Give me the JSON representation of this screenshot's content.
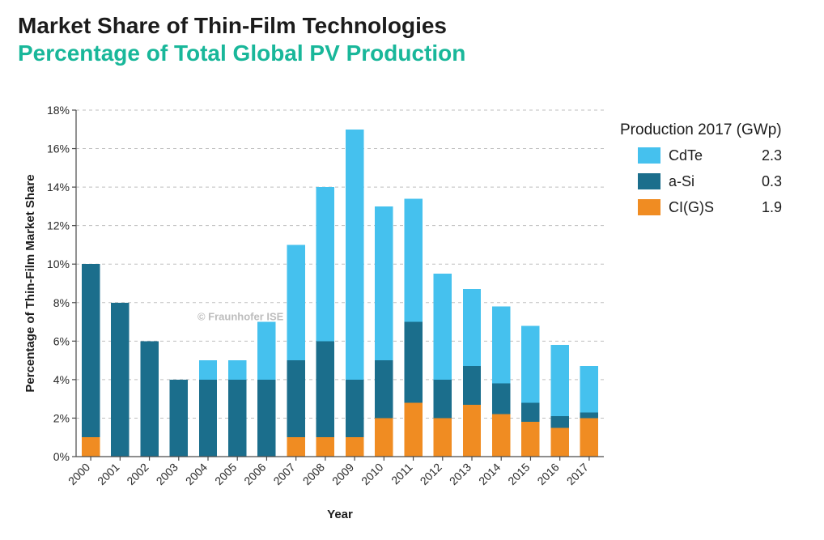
{
  "title": {
    "main": "Market Share of Thin-Film Technologies",
    "sub": "Percentage  of Total Global PV Production",
    "main_color": "#1c1c1c",
    "sub_color": "#19b79a",
    "fontsize": 28,
    "fontweight": 700
  },
  "chart": {
    "type": "stacked-bar",
    "xlabel": "Year",
    "ylabel": "Percentage of Thin-Film Market Share",
    "axis_title_fontsize": 15,
    "tick_fontsize": 14,
    "ylim": [
      0,
      18
    ],
    "ytick_step": 2,
    "yticks": [
      0,
      2,
      4,
      6,
      8,
      10,
      12,
      14,
      16,
      18
    ],
    "ytick_format": "{v}%",
    "grid_color": "#bfbfbf",
    "grid_dash": "4 4",
    "axis_color": "#4a4a4a",
    "background_color": "#ffffff",
    "bar_width_ratio": 0.62,
    "watermark": "© Fraunhofer ISE",
    "watermark_color": "#bdbdbd",
    "x_tick_rotate": -45,
    "categories": [
      "2000",
      "2001",
      "2002",
      "2003",
      "2004",
      "2005",
      "2006",
      "2007",
      "2008",
      "2009",
      "2010",
      "2011",
      "2012",
      "2013",
      "2014",
      "2015",
      "2016",
      "2017"
    ],
    "series": [
      {
        "key": "cigs",
        "label": "CI(G)S",
        "color": "#f08c22"
      },
      {
        "key": "asi",
        "label": "a-Si",
        "color": "#1b6e8c"
      },
      {
        "key": "cdte",
        "label": "CdTe",
        "color": "#45c1ee"
      }
    ],
    "values": {
      "cigs": [
        1.0,
        0.0,
        0.0,
        0.0,
        0.0,
        0.0,
        0.0,
        1.0,
        1.0,
        1.0,
        2.0,
        2.8,
        2.0,
        2.7,
        2.2,
        1.8,
        1.5,
        2.0
      ],
      "asi": [
        9.0,
        8.0,
        6.0,
        4.0,
        4.0,
        4.0,
        4.0,
        4.0,
        5.0,
        3.0,
        3.0,
        4.2,
        2.0,
        2.0,
        1.6,
        1.0,
        0.6,
        0.3
      ],
      "cdte": [
        0.0,
        0.0,
        0.0,
        0.0,
        1.0,
        1.0,
        3.0,
        6.0,
        8.0,
        13.0,
        8.0,
        6.4,
        5.5,
        4.0,
        4.0,
        4.0,
        3.7,
        2.4
      ]
    }
  },
  "legend": {
    "title": "Production 2017 (GWp)",
    "title_fontsize": 19,
    "item_fontsize": 18,
    "items": [
      {
        "label": "CdTe",
        "value": "2.3",
        "color": "#45c1ee"
      },
      {
        "label": "a-Si",
        "value": "0.3",
        "color": "#1b6e8c"
      },
      {
        "label": "CI(G)S",
        "value": "1.9",
        "color": "#f08c22"
      }
    ]
  }
}
